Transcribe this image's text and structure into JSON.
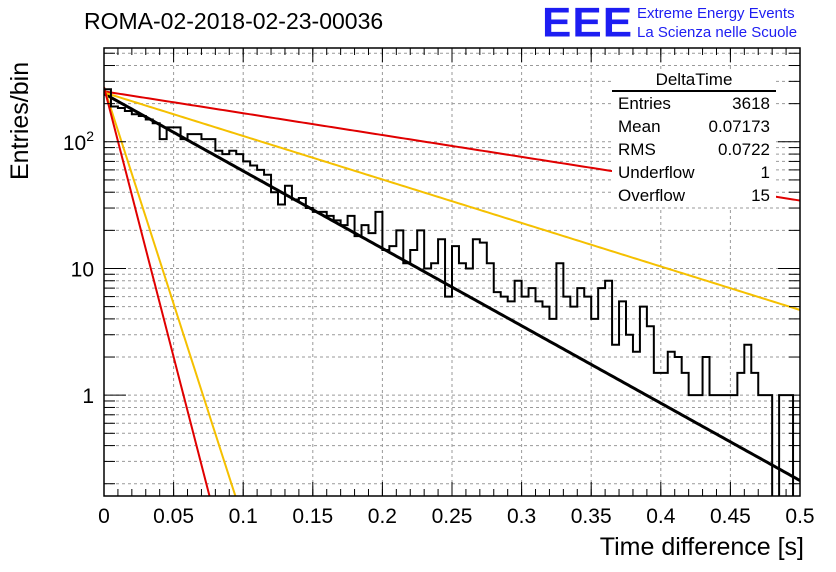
{
  "header": {
    "title": "ROMA-02-2018-02-23-00036",
    "logo_text": "EEE",
    "logo_line1": "Extreme Energy Events",
    "logo_line2": "La Scienza nelle Scuole",
    "logo_color": "#1d1df2"
  },
  "stats_box": {
    "title": "DeltaTime",
    "rows": [
      {
        "label": "Entries",
        "value": "3618"
      },
      {
        "label": "Mean",
        "value": "0.07173"
      },
      {
        "label": "RMS",
        "value": "0.0722"
      },
      {
        "label": "Underflow",
        "value": "1"
      },
      {
        "label": "Overflow",
        "value": "15"
      }
    ]
  },
  "chart_data": {
    "type": "line",
    "xlabel": "Time difference [s]",
    "ylabel": "Entries/bin",
    "x_scale": "linear",
    "y_scale": "log",
    "xlim": [
      0,
      0.5
    ],
    "ylim": [
      0.16,
      550
    ],
    "x_ticks": [
      "0",
      "0.05",
      "0.1",
      "0.15",
      "0.2",
      "0.25",
      "0.3",
      "0.35",
      "0.4",
      "0.45",
      "0.5"
    ],
    "y_ticks": [
      "1",
      "10",
      "10^2"
    ],
    "grid": true,
    "histogram": {
      "name": "DeltaTime",
      "bin_width": 0.005,
      "color": "#000000",
      "values": [
        260,
        190,
        185,
        175,
        165,
        160,
        150,
        140,
        105,
        130,
        130,
        105,
        115,
        115,
        105,
        105,
        85,
        80,
        85,
        80,
        70,
        65,
        60,
        55,
        40,
        32,
        45,
        35,
        36,
        30,
        28,
        28,
        26,
        24,
        22,
        26,
        18,
        22,
        19,
        28,
        14,
        15,
        20,
        11,
        14,
        20,
        10,
        11,
        17,
        6,
        15,
        11,
        10,
        17,
        16,
        11,
        6.5,
        6,
        5.5,
        8,
        6,
        7,
        5.5,
        5,
        4,
        11,
        6,
        5,
        7,
        6,
        4,
        7,
        8,
        2.5,
        5.5,
        3,
        2.2,
        5,
        3.5,
        1.5,
        1.5,
        2.2,
        2,
        1.5,
        1,
        1,
        2,
        1,
        1,
        1,
        1,
        1.5,
        2.5,
        1.5,
        1,
        1,
        0,
        1,
        1,
        0,
        0
      ]
    },
    "fits": [
      {
        "color": "#000000",
        "y0": 240,
        "tau": 0.0711
      },
      {
        "color": "#e00000",
        "y0": 250,
        "tau": 0.252
      },
      {
        "color": "#f5c000",
        "y0": 245,
        "tau": 0.1265
      },
      {
        "color": "#f5c000",
        "y0": 270,
        "tau": 0.0127
      },
      {
        "color": "#e00000",
        "y0": 270,
        "tau": 0.0102
      }
    ]
  }
}
